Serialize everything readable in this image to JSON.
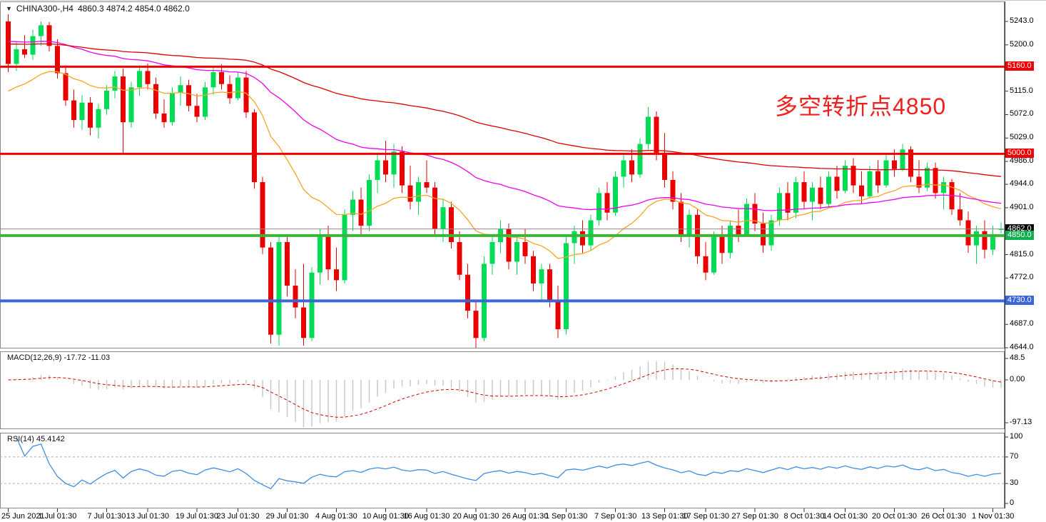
{
  "window": {
    "collapse_icon": "▼",
    "symbol_timeframe": "CHINA300-,H4",
    "ohlc": "4860.3 4874.2 4854.0 4862.0"
  },
  "annotation": {
    "text": "多空转折点4850",
    "color": "#F21F1F"
  },
  "chart_data": {
    "type": "candlestick",
    "symbol": "CHINA300-",
    "timeframe": "H4",
    "title": "CHINA300-,H4 4860.3 4874.2 4854.0 4862.0",
    "last_bar": {
      "open": 4860.3,
      "high": 4874.2,
      "low": 4854.0,
      "close": 4862.0
    },
    "style": {
      "bull": "#00DD55",
      "bear": "#EB0000",
      "background": "#FFFFFF",
      "border": "#8A8A8A",
      "axis_line": "#333333"
    },
    "y_axis": {
      "max": 5243.0,
      "min": 4644.0,
      "ticks": [
        "5243.0",
        "5200.0",
        "5115.0",
        "5072.0",
        "5029.0",
        "4986.0",
        "4944.0",
        "4901.0",
        "4815.0",
        "4772.0",
        "4687.0",
        "4644.0"
      ]
    },
    "hlines": [
      {
        "price": 5160.0,
        "label": "5160.0",
        "color": "#F00000",
        "width": 3,
        "badge_bg": "#F00000",
        "name": "resistance-line-5160"
      },
      {
        "price": 5000.0,
        "label": "5000.0",
        "color": "#F00000",
        "width": 3,
        "badge_bg": "#F00000",
        "name": "resistance-line-5000"
      },
      {
        "price": 4862.0,
        "label": "4862.0",
        "color": "#8C8C8C",
        "width": 1,
        "badge_bg": "#000000",
        "name": "current-price-line"
      },
      {
        "price": 4850.0,
        "label": "4850.0",
        "color": "#3CB43C",
        "width": 4,
        "badge_bg": "#0FB050",
        "name": "support-line-4850"
      },
      {
        "price": 4730.0,
        "label": "4730.0",
        "color": "#3A66D8",
        "width": 4,
        "badge_bg": "#3A66D8",
        "name": "support-line-4730"
      }
    ],
    "moving_averages": [
      {
        "name": "ma-fast-orange",
        "period": 20,
        "seed": 5110,
        "color": "#F5A623"
      },
      {
        "name": "ma-mid-magenta",
        "period": 55,
        "seed": 5208,
        "color": "#F000F0"
      },
      {
        "name": "ma-slow-red",
        "period": 130,
        "seed": 5202,
        "color": "#DD0000"
      }
    ],
    "macd": {
      "label": "MACD(12,26,9) -17.72 -11.03",
      "params": [
        12,
        26,
        9
      ],
      "values_shown": [
        -17.72,
        -11.03
      ],
      "axis_ticks": [
        {
          "label": "48.5",
          "value": 48.5
        },
        {
          "label": "0.00",
          "value": 0
        },
        {
          "label": "-97.13",
          "value": -97.13
        }
      ],
      "histogram_color": "#C6C6C6",
      "signal_color": "#D40000"
    },
    "rsi": {
      "label": "RSI(14) 45.4142",
      "period": 14,
      "value_shown": 45.4142,
      "axis_ticks": [
        {
          "label": "100",
          "value": 100
        },
        {
          "label": "70",
          "value": 70
        },
        {
          "label": "30",
          "value": 30
        },
        {
          "label": "0",
          "value": 0
        }
      ],
      "levels": [
        70,
        30
      ],
      "color": "#3D8FE0",
      "level_color": "#ADADAD"
    },
    "x_labels": [
      {
        "text": "25 Jun 2021",
        "index": 0
      },
      {
        "text": "1 Jul 01:30",
        "index": 6
      },
      {
        "text": "7 Jul 01:30",
        "index": 12
      },
      {
        "text": "13 Jul 01:30",
        "index": 17
      },
      {
        "text": "19 Jul 01:30",
        "index": 23
      },
      {
        "text": "23 Jul 01:30",
        "index": 28
      },
      {
        "text": "29 Jul 01:30",
        "index": 34
      },
      {
        "text": "4 Aug 01:30",
        "index": 40
      },
      {
        "text": "10 Aug 01:30",
        "index": 46
      },
      {
        "text": "16 Aug 01:30",
        "index": 51
      },
      {
        "text": "20 Aug 01:30",
        "index": 57
      },
      {
        "text": "26 Aug 01:30",
        "index": 63
      },
      {
        "text": "1 Sep 01:30",
        "index": 68
      },
      {
        "text": "7 Sep 01:30",
        "index": 74
      },
      {
        "text": "13 Sep 01:30",
        "index": 80
      },
      {
        "text": "17 Sep 01:30",
        "index": 85
      },
      {
        "text": "27 Sep 01:30",
        "index": 91
      },
      {
        "text": "8 Oct 01:30",
        "index": 97
      },
      {
        "text": "14 Oct 01:30",
        "index": 102
      },
      {
        "text": "20 Oct 01:30",
        "index": 108
      },
      {
        "text": "26 Oct 01:30",
        "index": 114
      },
      {
        "text": "1 Nov 01:30",
        "index": 120
      }
    ],
    "candles": [
      [
        5243,
        5256,
        5150,
        5165
      ],
      [
        5165,
        5205,
        5152,
        5192
      ],
      [
        5192,
        5218,
        5176,
        5182
      ],
      [
        5182,
        5228,
        5172,
        5216
      ],
      [
        5216,
        5243,
        5198,
        5236
      ],
      [
        5236,
        5242,
        5188,
        5198
      ],
      [
        5198,
        5210,
        5138,
        5148
      ],
      [
        5148,
        5162,
        5088,
        5098
      ],
      [
        5098,
        5118,
        5048,
        5062
      ],
      [
        5062,
        5108,
        5044,
        5094
      ],
      [
        5094,
        5104,
        5034,
        5048
      ],
      [
        5048,
        5092,
        5028,
        5082
      ],
      [
        5082,
        5126,
        5072,
        5116
      ],
      [
        5116,
        5152,
        5102,
        5142
      ],
      [
        5142,
        5156,
        5000,
        5058
      ],
      [
        5058,
        5132,
        5048,
        5122
      ],
      [
        5122,
        5162,
        5106,
        5152
      ],
      [
        5152,
        5166,
        5118,
        5128
      ],
      [
        5128,
        5140,
        5064,
        5074
      ],
      [
        5074,
        5100,
        5048,
        5058
      ],
      [
        5058,
        5122,
        5052,
        5112
      ],
      [
        5112,
        5142,
        5088,
        5126
      ],
      [
        5126,
        5136,
        5078,
        5088
      ],
      [
        5088,
        5110,
        5058,
        5068
      ],
      [
        5068,
        5132,
        5062,
        5122
      ],
      [
        5122,
        5160,
        5108,
        5150
      ],
      [
        5150,
        5164,
        5118,
        5128
      ],
      [
        5128,
        5144,
        5092,
        5102
      ],
      [
        5102,
        5150,
        5098,
        5140
      ],
      [
        5140,
        5152,
        5066,
        5076
      ],
      [
        5076,
        5082,
        4936,
        4948
      ],
      [
        4948,
        4958,
        4816,
        4828
      ],
      [
        4828,
        4838,
        4652,
        4668
      ],
      [
        4668,
        4848,
        4648,
        4838
      ],
      [
        4838,
        4850,
        4738,
        4758
      ],
      [
        4758,
        4788,
        4698,
        4718
      ],
      [
        4718,
        4798,
        4648,
        4662
      ],
      [
        4662,
        4792,
        4656,
        4782
      ],
      [
        4782,
        4862,
        4760,
        4848
      ],
      [
        4848,
        4868,
        4768,
        4788
      ],
      [
        4788,
        4828,
        4748,
        4768
      ],
      [
        4768,
        4898,
        4762,
        4888
      ],
      [
        4888,
        4932,
        4858,
        4916
      ],
      [
        4916,
        4938,
        4848,
        4868
      ],
      [
        4868,
        4962,
        4858,
        4952
      ],
      [
        4952,
        5002,
        4928,
        4988
      ],
      [
        4988,
        5024,
        4948,
        4962
      ],
      [
        4962,
        5018,
        4938,
        5004
      ],
      [
        5004,
        5014,
        4928,
        4942
      ],
      [
        4942,
        4978,
        4898,
        4912
      ],
      [
        4912,
        4958,
        4888,
        4948
      ],
      [
        4948,
        4988,
        4928,
        4938
      ],
      [
        4938,
        4948,
        4848,
        4862
      ],
      [
        4862,
        4918,
        4838,
        4902
      ],
      [
        4902,
        4912,
        4826,
        4838
      ],
      [
        4838,
        4858,
        4768,
        4778
      ],
      [
        4778,
        4798,
        4698,
        4712
      ],
      [
        4712,
        4728,
        4644,
        4662
      ],
      [
        4662,
        4812,
        4656,
        4798
      ],
      [
        4798,
        4852,
        4778,
        4838
      ],
      [
        4838,
        4878,
        4818,
        4862
      ],
      [
        4862,
        4872,
        4788,
        4802
      ],
      [
        4802,
        4848,
        4778,
        4838
      ],
      [
        4838,
        4862,
        4798,
        4812
      ],
      [
        4812,
        4822,
        4748,
        4762
      ],
      [
        4762,
        4798,
        4728,
        4788
      ],
      [
        4788,
        4798,
        4718,
        4732
      ],
      [
        4732,
        4758,
        4662,
        4678
      ],
      [
        4678,
        4848,
        4668,
        4836
      ],
      [
        4836,
        4868,
        4798,
        4858
      ],
      [
        4858,
        4878,
        4818,
        4832
      ],
      [
        4832,
        4888,
        4822,
        4878
      ],
      [
        4878,
        4938,
        4868,
        4928
      ],
      [
        4928,
        4948,
        4878,
        4892
      ],
      [
        4892,
        4968,
        4886,
        4958
      ],
      [
        4958,
        4998,
        4938,
        4988
      ],
      [
        4988,
        5008,
        4948,
        4962
      ],
      [
        4962,
        5028,
        4956,
        5018
      ],
      [
        5018,
        5086,
        5008,
        5068
      ],
      [
        5068,
        5078,
        4988,
        5002
      ],
      [
        5002,
        5038,
        4938,
        4952
      ],
      [
        4952,
        4968,
        4898,
        4912
      ],
      [
        4912,
        4928,
        4838,
        4852
      ],
      [
        4852,
        4898,
        4828,
        4888
      ],
      [
        4888,
        4898,
        4798,
        4812
      ],
      [
        4812,
        4838,
        4768,
        4782
      ],
      [
        4782,
        4858,
        4778,
        4848
      ],
      [
        4848,
        4868,
        4798,
        4818
      ],
      [
        4818,
        4878,
        4808,
        4868
      ],
      [
        4868,
        4898,
        4838,
        4852
      ],
      [
        4852,
        4918,
        4848,
        4908
      ],
      [
        4908,
        4928,
        4858,
        4872
      ],
      [
        4872,
        4892,
        4818,
        4832
      ],
      [
        4832,
        4888,
        4822,
        4878
      ],
      [
        4878,
        4938,
        4868,
        4928
      ],
      [
        4928,
        4948,
        4878,
        4892
      ],
      [
        4892,
        4958,
        4882,
        4948
      ],
      [
        4948,
        4968,
        4898,
        4912
      ],
      [
        4912,
        4948,
        4878,
        4938
      ],
      [
        4938,
        4958,
        4898,
        4908
      ],
      [
        4908,
        4968,
        4902,
        4958
      ],
      [
        4958,
        4978,
        4918,
        4932
      ],
      [
        4932,
        4988,
        4928,
        4978
      ],
      [
        4978,
        4992,
        4928,
        4942
      ],
      [
        4942,
        4968,
        4908,
        4922
      ],
      [
        4922,
        4978,
        4918,
        4968
      ],
      [
        4968,
        4988,
        4928,
        4942
      ],
      [
        4942,
        4998,
        4938,
        4988
      ],
      [
        4988,
        5008,
        4958,
        4972
      ],
      [
        4972,
        5018,
        4968,
        5008
      ],
      [
        5008,
        5014,
        4948,
        4958
      ],
      [
        4958,
        4988,
        4928,
        4938
      ],
      [
        4938,
        4984,
        4932,
        4974
      ],
      [
        4974,
        4984,
        4918,
        4928
      ],
      [
        4928,
        4958,
        4898,
        4948
      ],
      [
        4948,
        4954,
        4888,
        4898
      ],
      [
        4898,
        4928,
        4868,
        4878
      ],
      [
        4878,
        4894,
        4818,
        4832
      ],
      [
        4832,
        4868,
        4798,
        4858
      ],
      [
        4858,
        4878,
        4808,
        4824
      ],
      [
        4824,
        4868,
        4814,
        4852
      ],
      [
        4860.3,
        4874.2,
        4854.0,
        4862.0
      ]
    ]
  }
}
